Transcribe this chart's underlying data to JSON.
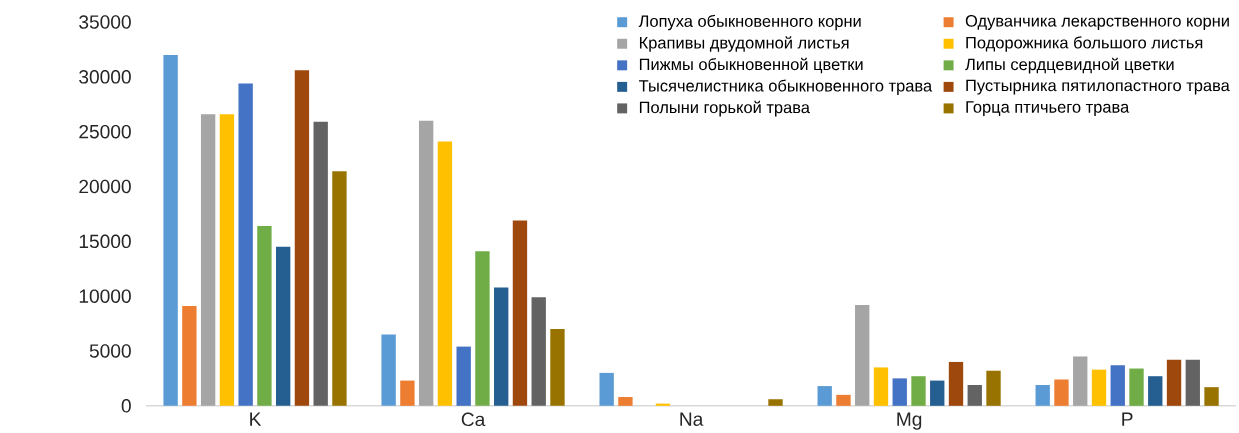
{
  "chart_data": {
    "type": "bar",
    "categories": [
      "K",
      "Ca",
      "Na",
      "Mg",
      "P"
    ],
    "ylim": [
      0,
      35000
    ],
    "yticks": [
      0,
      5000,
      10000,
      15000,
      20000,
      25000,
      30000,
      35000
    ],
    "grid": false,
    "legend": "top right",
    "series": [
      {
        "name": "Лопуха обыкновенного корни",
        "color": "#5b9bd5",
        "values": [
          32000,
          6500,
          3000,
          1800,
          1900
        ]
      },
      {
        "name": "Одуванчика лекарственного корни",
        "color": "#ed7d31",
        "values": [
          9100,
          2300,
          800,
          1000,
          2400
        ]
      },
      {
        "name": "Крапивы двудомной листья",
        "color": "#a5a5a5",
        "values": [
          26600,
          26000,
          0,
          9200,
          4500
        ]
      },
      {
        "name": "Подорожника большого листья",
        "color": "#ffc000",
        "values": [
          26600,
          24100,
          200,
          3500,
          3300
        ]
      },
      {
        "name": "Пижмы обыкновенной цветки",
        "color": "#4472c4",
        "values": [
          29400,
          5400,
          0,
          2500,
          3700
        ]
      },
      {
        "name": "Липы сердцевидной цветки",
        "color": "#70ad47",
        "values": [
          16400,
          14100,
          0,
          2700,
          3400
        ]
      },
      {
        "name": "Тысячелистника обыкновенного трава",
        "color": "#255e91",
        "values": [
          14500,
          10800,
          0,
          2300,
          2700
        ]
      },
      {
        "name": "Пустырника пятилопастного трава",
        "color": "#9e480e",
        "values": [
          30600,
          16900,
          0,
          4000,
          4200
        ]
      },
      {
        "name": "Полыни горькой трава",
        "color": "#636363",
        "values": [
          25900,
          9900,
          0,
          1900,
          4200
        ]
      },
      {
        "name": "Горца птичьего трава",
        "color": "#997300",
        "values": [
          21400,
          7000,
          600,
          3200,
          1700
        ]
      }
    ]
  }
}
